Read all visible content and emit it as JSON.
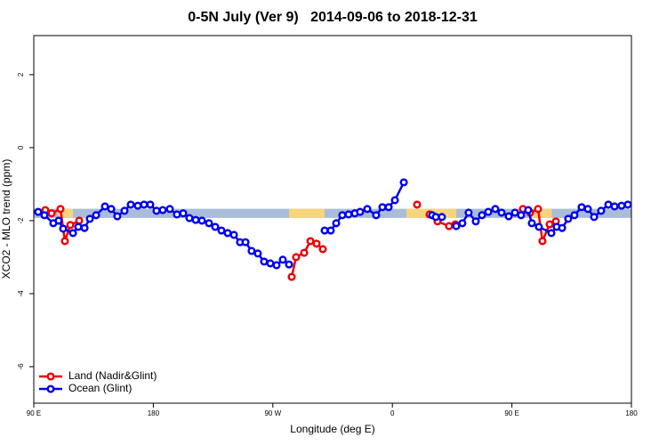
{
  "chart_data": {
    "type": "line",
    "title": "0-5N July (Ver 9)   2014-09-06 to 2018-12-31",
    "x_label": "Longitude (deg E)",
    "y_label": "XCO2 - MLO trend (ppm)",
    "xlim": [
      90,
      540
    ],
    "ylim": [
      -7,
      3.07
    ],
    "xticks": [
      {
        "value": 90,
        "label": "90 E"
      },
      {
        "value": 180,
        "label": "180"
      },
      {
        "value": 270,
        "label": "90 W"
      },
      {
        "value": 360,
        "label": "0"
      },
      {
        "value": 450,
        "label": "90 E"
      },
      {
        "value": 540,
        "label": "180"
      }
    ],
    "yticks": [
      -6,
      -4,
      -2,
      0,
      2
    ],
    "legend": "bottom-left",
    "band": {
      "value": -1.8,
      "thickness": 0.25,
      "color": "#a9bcd9",
      "highlight_color": "#f7d57c",
      "highlights": [
        [
          108,
          119.5
        ],
        [
          282.2,
          309
        ],
        [
          370.6,
          408.1
        ],
        [
          463,
          480
        ]
      ]
    },
    "series": [
      {
        "name": "Land (Nadir&Glint)",
        "color": "#ee0000",
        "x": [
          98.7,
          103.4,
          110.1,
          113.4,
          117.5,
          124.2,
          160,
          284.2,
          287.5,
          293.6,
          298.3,
          302.9,
          307.6,
          340,
          378.6,
          385,
          388.0,
          394.0,
          402.7,
          407.4,
          430,
          458.3,
          463.7,
          469.7,
          473.0,
          478.4,
          483.1
        ],
        "values": [
          -1.71,
          -1.8,
          -1.68,
          -2.56,
          -2.12,
          -2.0,
          null,
          -3.54,
          -3.0,
          -2.88,
          -2.56,
          -2.63,
          -2.78,
          null,
          -1.56,
          null,
          -1.83,
          -2.02,
          -2.15,
          -2.1,
          null,
          -1.68,
          -1.78,
          -1.68,
          -2.56,
          -2.1,
          -2.02
        ]
      },
      {
        "name": "Ocean (Glint)",
        "color": "#0000ee",
        "x": [
          93.3,
          98.0,
          104.7,
          108.7,
          112.1,
          119.5,
          123.5,
          128.2,
          132.2,
          136.9,
          143.6,
          148.3,
          152.9,
          158.3,
          163.0,
          168.3,
          173.0,
          177.7,
          182.4,
          187.1,
          192.4,
          197.8,
          202.5,
          207.2,
          211.9,
          216.6,
          221.9,
          226.6,
          231.3,
          236.0,
          240.7,
          245.3,
          249.4,
          254.0,
          258.7,
          263.4,
          268.1,
          272.8,
          277.5,
          282.2,
          296,
          309.0,
          313.6,
          317.7,
          322.3,
          327.0,
          331.7,
          335.7,
          341.1,
          347.8,
          352.5,
          357.2,
          361.9,
          368.6,
          380,
          390.0,
          392.7,
          397.3,
          402,
          408.1,
          412.7,
          417.4,
          422.8,
          427.5,
          432.2,
          437.5,
          442.2,
          447.6,
          452.3,
          456.9,
          462.3,
          465.0,
          470.3,
          479.7,
          483.7,
          487.8,
          492.4,
          497.1,
          502.5,
          507.2,
          511.9,
          517.2,
          522.6,
          527.3,
          532.6,
          537.3
        ],
        "values": [
          -1.76,
          -1.85,
          -2.07,
          -2.0,
          -2.22,
          -2.34,
          -2.17,
          -2.2,
          -1.95,
          -1.85,
          -1.61,
          -1.68,
          -1.88,
          -1.73,
          -1.56,
          -1.59,
          -1.56,
          -1.56,
          -1.73,
          -1.71,
          -1.68,
          -1.83,
          -1.8,
          -1.93,
          -1.98,
          -2.0,
          -2.07,
          -2.17,
          -2.27,
          -2.34,
          -2.39,
          -2.59,
          -2.59,
          -2.83,
          -2.9,
          -3.12,
          -3.17,
          -3.22,
          -3.07,
          -3.2,
          null,
          -2.27,
          -2.27,
          -2.07,
          -1.85,
          -1.83,
          -1.8,
          -1.76,
          -1.68,
          -1.85,
          -1.63,
          -1.63,
          -1.44,
          -0.95,
          null,
          -1.85,
          -1.9,
          -1.9,
          null,
          -2.15,
          -2.07,
          -1.78,
          -2.02,
          -1.85,
          -1.76,
          -1.68,
          -1.78,
          -1.88,
          -1.78,
          -1.85,
          -1.71,
          -2.07,
          -2.17,
          -2.34,
          -2.17,
          -2.2,
          -1.95,
          -1.85,
          -1.63,
          -1.68,
          -1.9,
          -1.73,
          -1.56,
          -1.61,
          -1.59,
          -1.56
        ]
      }
    ]
  }
}
